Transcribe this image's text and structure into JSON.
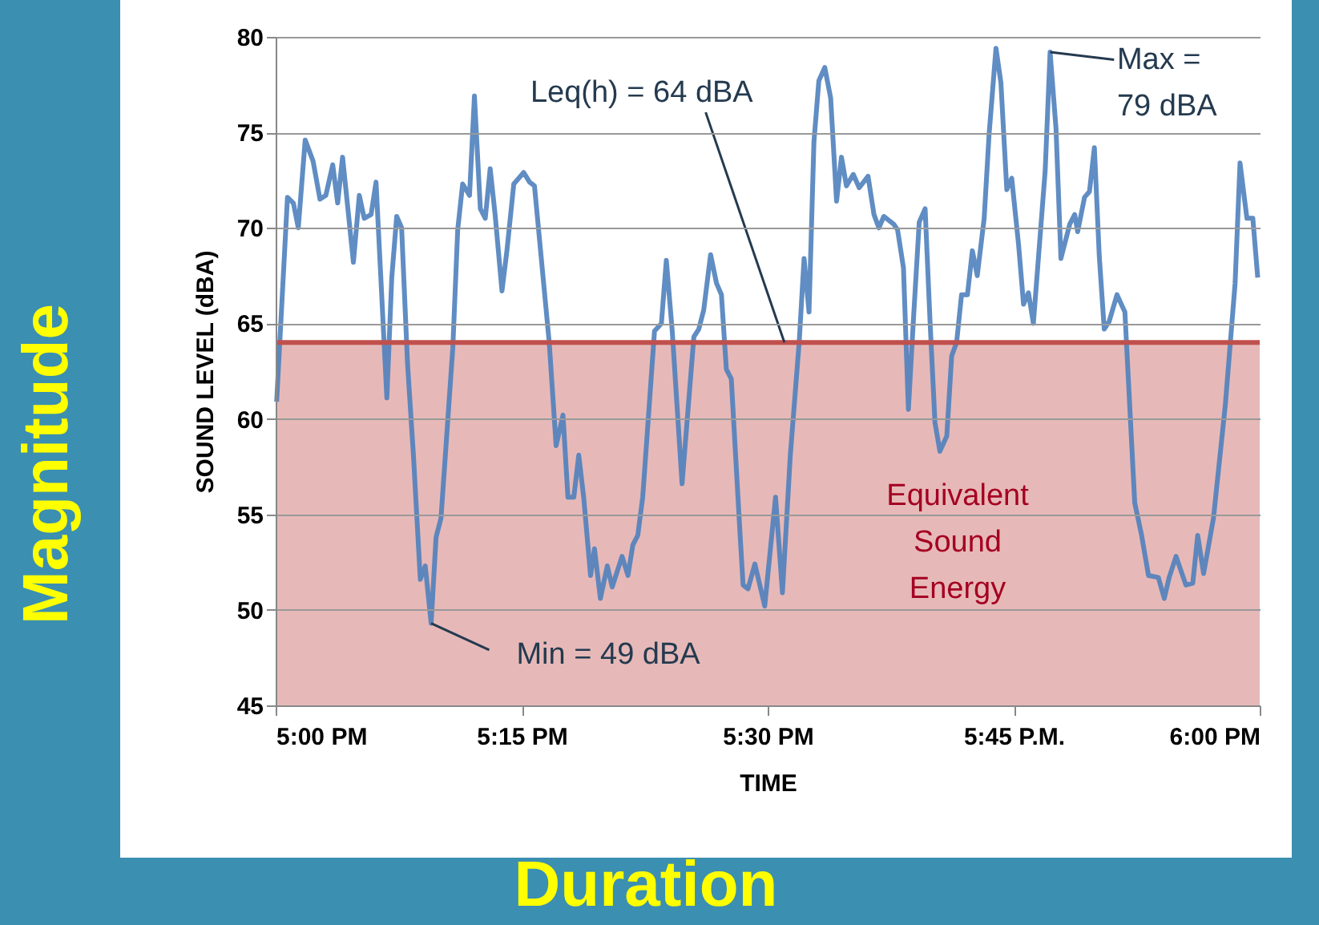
{
  "chart_data": {
    "type": "line",
    "xlabel": "TIME",
    "ylabel": "SOUND LEVEL (dBA)",
    "x": [
      17.001,
      17.012,
      17.018,
      17.023,
      17.03,
      17.038,
      17.045,
      17.051,
      17.058,
      17.063,
      17.068,
      17.079,
      17.085,
      17.09,
      17.097,
      17.102,
      17.113,
      17.118,
      17.123,
      17.128,
      17.134,
      17.14,
      17.147,
      17.152,
      17.158,
      17.163,
      17.168,
      17.18,
      17.185,
      17.19,
      17.197,
      17.202,
      17.208,
      17.213,
      17.218,
      17.223,
      17.23,
      17.235,
      17.242,
      17.252,
      17.258,
      17.263,
      17.278,
      17.285,
      17.292,
      17.297,
      17.303,
      17.308,
      17.313,
      17.32,
      17.324,
      17.33,
      17.337,
      17.342,
      17.352,
      17.358,
      17.363,
      17.368,
      17.373,
      17.385,
      17.392,
      17.397,
      17.403,
      17.413,
      17.425,
      17.43,
      17.435,
      17.442,
      17.448,
      17.453,
      17.458,
      17.463,
      17.472,
      17.475,
      17.48,
      17.487,
      17.497,
      17.508,
      17.515,
      17.523,
      17.532,
      17.537,
      17.542,
      17.547,
      17.552,
      17.558,
      17.564,
      17.57,
      17.575,
      17.58,
      17.587,
      17.593,
      17.602,
      17.608,
      17.613,
      17.618,
      17.628,
      17.632,
      17.638,
      17.643,
      17.648,
      17.654,
      17.66,
      17.665,
      17.67,
      17.675,
      17.682,
      17.687,
      17.692,
      17.697,
      17.703,
      17.708,
      17.713,
      17.72,
      17.725,
      17.732,
      17.737,
      17.743,
      17.748,
      17.755,
      17.76,
      17.765,
      17.77,
      17.782,
      17.787,
      17.793,
      17.798,
      17.807,
      17.812,
      17.815,
      17.822,
      17.827,
      17.832,
      17.837,
      17.842,
      17.847,
      17.855,
      17.863,
      17.873,
      17.88,
      17.887,
      17.897,
      17.903,
      17.908,
      17.915,
      17.925,
      17.932,
      17.937,
      17.943,
      17.953,
      17.965,
      17.975,
      17.98,
      17.987,
      17.993,
      17.998
    ],
    "series": [
      {
        "color": "#4f81bd",
        "values": [
          60.9,
          71.6,
          71.3,
          70.0,
          74.6,
          73.5,
          71.5,
          71.7,
          73.3,
          71.3,
          73.7,
          68.2,
          71.7,
          70.5,
          70.7,
          72.4,
          61.1,
          67.4,
          70.6,
          70.0,
          62.9,
          58.1,
          51.6,
          52.3,
          49.3,
          53.8,
          54.8,
          63.7,
          69.9,
          72.3,
          71.7,
          76.9,
          71.0,
          70.5,
          73.1,
          70.7,
          66.7,
          68.8,
          72.3,
          72.9,
          72.4,
          72.2,
          64.0,
          58.6,
          60.2,
          55.9,
          55.9,
          58.1,
          55.9,
          51.8,
          53.2,
          50.6,
          52.3,
          51.2,
          52.8,
          51.8,
          53.4,
          53.9,
          55.9,
          64.6,
          65.0,
          68.3,
          64.6,
          56.6,
          64.3,
          64.7,
          65.7,
          68.6,
          67.1,
          66.5,
          62.6,
          62.1,
          53.9,
          51.3,
          51.1,
          52.4,
          50.2,
          55.9,
          50.9,
          58.1,
          64.0,
          68.4,
          65.6,
          74.5,
          77.7,
          78.4,
          76.8,
          71.4,
          73.7,
          72.2,
          72.8,
          72.1,
          72.7,
          70.7,
          70.0,
          70.6,
          70.2,
          69.9,
          67.9,
          60.5,
          65.1,
          70.3,
          71.0,
          65.1,
          59.8,
          58.3,
          59.1,
          63.3,
          64.0,
          66.5,
          66.5,
          68.8,
          67.5,
          70.5,
          74.9,
          79.4,
          77.6,
          72.0,
          72.6,
          69.1,
          66.0,
          66.6,
          65.0,
          73.0,
          79.2,
          75.2,
          68.4,
          70.2,
          70.7,
          69.8,
          71.6,
          71.9,
          74.2,
          68.5,
          64.7,
          65.1,
          66.5,
          65.6,
          55.6,
          53.9,
          51.8,
          51.7,
          50.6,
          51.7,
          52.8,
          51.3,
          51.4,
          53.9,
          51.9,
          54.8,
          60.7,
          67.1,
          73.4,
          70.5,
          70.5,
          67.4
        ]
      }
    ],
    "xlim": [
      17,
      18
    ],
    "xticks": [
      {
        "value": 17,
        "label": "5:00 PM"
      },
      {
        "value": 17.25,
        "label": "5:15 PM"
      },
      {
        "value": 17.5,
        "label": "5:30 PM"
      },
      {
        "value": 17.75,
        "label": "5:45 P.M."
      },
      {
        "value": 18,
        "label": "6:00 PM"
      }
    ],
    "ylim": [
      45,
      80
    ],
    "yticks": [
      45,
      50,
      55,
      60,
      65,
      70,
      75,
      80
    ],
    "grid": "y",
    "marker": "none",
    "line_style": "solid",
    "ref_lines": [
      {
        "axis": "y",
        "value": 64,
        "color": "#c0504d"
      }
    ],
    "bands": [
      {
        "axis": "y",
        "from": 45,
        "to": 64,
        "label": "Equivalent Sound Energy",
        "color": "#c0504d"
      }
    ],
    "annotations": [
      {
        "text": "Leq(h) = 64 dBA",
        "x": 17.517,
        "y": 64
      },
      {
        "text": "Min = 49 dBA",
        "x": 17.158,
        "y": 49.3
      },
      {
        "text": "Max = 79 dBA",
        "x": 17.787,
        "y": 79.2
      },
      "Magnitude",
      "Duration"
    ]
  }
}
